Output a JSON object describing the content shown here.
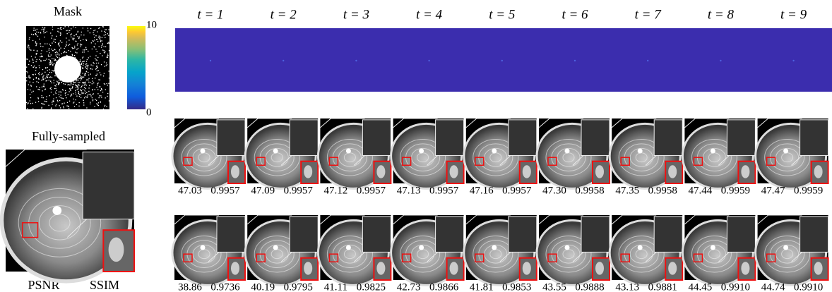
{
  "mask": {
    "title": "Mask",
    "colorbar_ticks": [
      "10",
      "0"
    ]
  },
  "timesteps": [
    "t = 1",
    "t = 2",
    "t = 3",
    "t = 4",
    "t = 5",
    "t = 6",
    "t = 7",
    "t = 8",
    "t = 9"
  ],
  "reference": {
    "title": "Fully-sampled",
    "metrics": [
      "PSNR",
      "SSIM"
    ]
  },
  "rows": [
    [
      [
        "47.03",
        "0.9957"
      ],
      [
        "47.09",
        "0.9957"
      ],
      [
        "47.12",
        "0.9957"
      ],
      [
        "47.13",
        "0.9957"
      ],
      [
        "47.16",
        "0.9957"
      ],
      [
        "47.30",
        "0.9958"
      ],
      [
        "47.35",
        "0.9958"
      ],
      [
        "47.44",
        "0.9959"
      ],
      [
        "47.47",
        "0.9959"
      ]
    ],
    [
      [
        "38.86",
        "0.9736"
      ],
      [
        "40.19",
        "0.9795"
      ],
      [
        "41.11",
        "0.9825"
      ],
      [
        "42.73",
        "0.9866"
      ],
      [
        "41.81",
        "0.9853"
      ],
      [
        "43.55",
        "0.9888"
      ],
      [
        "43.13",
        "0.9881"
      ],
      [
        "44.45",
        "0.9910"
      ],
      [
        "44.74",
        "0.9910"
      ]
    ]
  ]
}
